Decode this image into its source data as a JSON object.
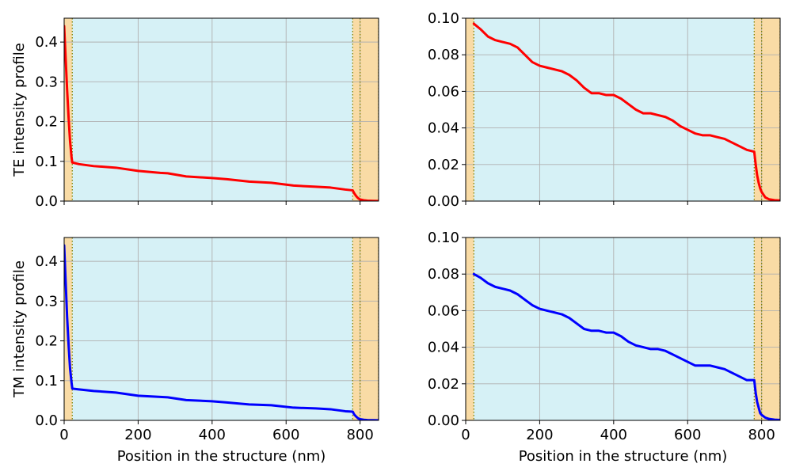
{
  "colors": {
    "te_curve": "#ff0000",
    "tm_curve": "#0000ff",
    "core_region": "#d6f1f6",
    "cladding_region": "#f9dba5",
    "boundary_line": "#808000",
    "grid": "#b0b0b0"
  },
  "labels": {
    "te_ylabel": "TE intensity profile",
    "tm_ylabel": "TM intensity profile",
    "xlabel": "Position in the structure (nm)"
  },
  "chart_data": [
    {
      "type": "line",
      "panel": "top-left",
      "ylabel": "TE intensity profile",
      "xlabel": "",
      "xlim": [
        0,
        850
      ],
      "ylim": [
        0,
        0.46
      ],
      "x_ticks": [
        0,
        200,
        400,
        600,
        800
      ],
      "x_tick_labels_shown": false,
      "y_ticks": [
        0.0,
        0.1,
        0.2,
        0.3,
        0.4
      ],
      "y_tick_labels": [
        "0.0",
        "0.1",
        "0.2",
        "0.3",
        "0.4"
      ],
      "grid": true,
      "regions": [
        {
          "kind": "cladding",
          "x": [
            0,
            22
          ]
        },
        {
          "kind": "core",
          "x": [
            22,
            780
          ]
        },
        {
          "kind": "cladding",
          "x": [
            780,
            850
          ]
        }
      ],
      "boundaries": [
        22,
        780,
        800,
        850
      ],
      "series": [
        {
          "color": "red",
          "x": [
            0,
            4,
            8,
            12,
            16,
            20,
            22,
            40,
            80,
            140,
            200,
            260,
            280,
            330,
            400,
            440,
            500,
            560,
            620,
            680,
            720,
            760,
            780,
            784,
            790,
            795,
            800,
            810,
            820,
            835,
            850
          ],
          "y": [
            0.44,
            0.36,
            0.28,
            0.21,
            0.15,
            0.11,
            0.097,
            0.093,
            0.088,
            0.084,
            0.076,
            0.071,
            0.07,
            0.062,
            0.058,
            0.055,
            0.049,
            0.046,
            0.039,
            0.036,
            0.034,
            0.029,
            0.027,
            0.02,
            0.012,
            0.007,
            0.004,
            0.002,
            0.001,
            0.0005,
            0.0003
          ]
        }
      ]
    },
    {
      "type": "line",
      "panel": "top-right",
      "ylabel": "",
      "xlabel": "",
      "xlim": [
        0,
        850
      ],
      "ylim": [
        0,
        0.1
      ],
      "x_ticks": [
        0,
        200,
        400,
        600,
        800
      ],
      "x_tick_labels_shown": false,
      "y_ticks": [
        0.0,
        0.02,
        0.04,
        0.06,
        0.08,
        0.1
      ],
      "y_tick_labels": [
        "0.00",
        "0.02",
        "0.04",
        "0.06",
        "0.08",
        "0.10"
      ],
      "grid": true,
      "regions": [
        {
          "kind": "cladding",
          "x": [
            0,
            22
          ]
        },
        {
          "kind": "core",
          "x": [
            22,
            780
          ]
        },
        {
          "kind": "cladding",
          "x": [
            780,
            850
          ]
        }
      ],
      "boundaries": [
        22,
        780,
        800,
        850
      ],
      "series": [
        {
          "color": "red",
          "x": [
            22,
            40,
            60,
            80,
            100,
            120,
            140,
            160,
            180,
            200,
            220,
            240,
            260,
            280,
            300,
            320,
            340,
            360,
            380,
            400,
            420,
            440,
            460,
            480,
            500,
            520,
            540,
            560,
            580,
            600,
            620,
            640,
            660,
            680,
            700,
            720,
            740,
            760,
            780,
            784,
            788,
            792,
            796,
            800,
            810,
            820,
            835,
            850
          ],
          "y": [
            0.097,
            0.094,
            0.09,
            0.088,
            0.087,
            0.086,
            0.084,
            0.08,
            0.076,
            0.074,
            0.073,
            0.072,
            0.071,
            0.069,
            0.066,
            0.062,
            0.059,
            0.059,
            0.058,
            0.058,
            0.056,
            0.053,
            0.05,
            0.048,
            0.048,
            0.047,
            0.046,
            0.044,
            0.041,
            0.039,
            0.037,
            0.036,
            0.036,
            0.035,
            0.034,
            0.032,
            0.03,
            0.028,
            0.027,
            0.02,
            0.014,
            0.01,
            0.007,
            0.005,
            0.002,
            0.001,
            0.0005,
            0.0003
          ]
        }
      ]
    },
    {
      "type": "line",
      "panel": "bottom-left",
      "ylabel": "TM intensity profile",
      "xlabel": "Position in the structure (nm)",
      "xlim": [
        0,
        850
      ],
      "ylim": [
        0,
        0.46
      ],
      "x_ticks": [
        0,
        200,
        400,
        600,
        800
      ],
      "x_tick_labels": [
        "0",
        "200",
        "400",
        "600",
        "800"
      ],
      "y_ticks": [
        0.0,
        0.1,
        0.2,
        0.3,
        0.4
      ],
      "y_tick_labels": [
        "0.0",
        "0.1",
        "0.2",
        "0.3",
        "0.4"
      ],
      "grid": true,
      "regions": [
        {
          "kind": "cladding",
          "x": [
            0,
            22
          ]
        },
        {
          "kind": "core",
          "x": [
            22,
            780
          ]
        },
        {
          "kind": "cladding",
          "x": [
            780,
            850
          ]
        }
      ],
      "boundaries": [
        22,
        780,
        800,
        850
      ],
      "series": [
        {
          "color": "blue",
          "x": [
            0,
            4,
            8,
            12,
            16,
            20,
            22,
            40,
            80,
            140,
            200,
            260,
            280,
            330,
            400,
            440,
            500,
            560,
            620,
            680,
            720,
            760,
            780,
            784,
            790,
            795,
            800,
            810,
            820,
            835,
            850
          ],
          "y": [
            0.44,
            0.35,
            0.26,
            0.19,
            0.13,
            0.095,
            0.08,
            0.078,
            0.074,
            0.07,
            0.062,
            0.059,
            0.058,
            0.051,
            0.048,
            0.045,
            0.04,
            0.038,
            0.032,
            0.03,
            0.028,
            0.023,
            0.022,
            0.015,
            0.009,
            0.005,
            0.003,
            0.0015,
            0.0008,
            0.0004,
            0.0002
          ]
        }
      ]
    },
    {
      "type": "line",
      "panel": "bottom-right",
      "ylabel": "",
      "xlabel": "Position in the structure (nm)",
      "xlim": [
        0,
        850
      ],
      "ylim": [
        0,
        0.1
      ],
      "x_ticks": [
        0,
        200,
        400,
        600,
        800
      ],
      "x_tick_labels": [
        "0",
        "200",
        "400",
        "600",
        "800"
      ],
      "y_ticks": [
        0.0,
        0.02,
        0.04,
        0.06,
        0.08,
        0.1
      ],
      "y_tick_labels": [
        "0.00",
        "0.02",
        "0.04",
        "0.06",
        "0.08",
        "0.10"
      ],
      "grid": true,
      "regions": [
        {
          "kind": "cladding",
          "x": [
            0,
            22
          ]
        },
        {
          "kind": "core",
          "x": [
            22,
            780
          ]
        },
        {
          "kind": "cladding",
          "x": [
            780,
            850
          ]
        }
      ],
      "boundaries": [
        22,
        780,
        800,
        850
      ],
      "series": [
        {
          "color": "blue",
          "x": [
            22,
            40,
            60,
            80,
            100,
            120,
            140,
            160,
            180,
            200,
            220,
            240,
            260,
            280,
            300,
            320,
            340,
            360,
            380,
            400,
            420,
            440,
            460,
            480,
            500,
            520,
            540,
            560,
            580,
            600,
            620,
            640,
            660,
            680,
            700,
            720,
            740,
            760,
            780,
            784,
            788,
            792,
            796,
            800,
            810,
            820,
            835,
            850
          ],
          "y": [
            0.08,
            0.078,
            0.075,
            0.073,
            0.072,
            0.071,
            0.069,
            0.066,
            0.063,
            0.061,
            0.06,
            0.059,
            0.058,
            0.056,
            0.053,
            0.05,
            0.049,
            0.049,
            0.048,
            0.048,
            0.046,
            0.043,
            0.041,
            0.04,
            0.039,
            0.039,
            0.038,
            0.036,
            0.034,
            0.032,
            0.03,
            0.03,
            0.03,
            0.029,
            0.028,
            0.026,
            0.024,
            0.022,
            0.022,
            0.015,
            0.01,
            0.007,
            0.004,
            0.003,
            0.0015,
            0.0008,
            0.0004,
            0.0002
          ]
        }
      ]
    }
  ]
}
